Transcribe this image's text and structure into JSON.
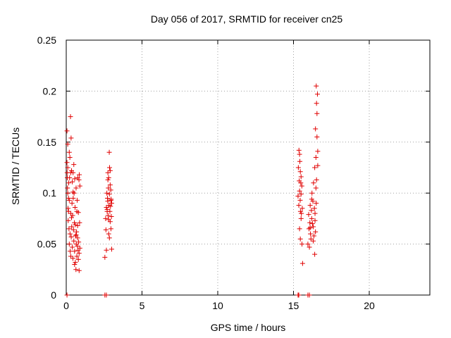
{
  "chart_data": {
    "type": "scatter",
    "title": "Day 056 of 2017, SRMTID for receiver cn25",
    "xlabel": "GPS time / hours",
    "ylabel": "SRMTID / TECUs",
    "xlim": [
      0,
      24
    ],
    "ylim": [
      0,
      0.25
    ],
    "xticks": [
      0,
      5,
      10,
      15,
      20
    ],
    "xtick_labels": [
      "0",
      "5",
      "10",
      "15",
      "20"
    ],
    "yticks": [
      0,
      0.05,
      0.1,
      0.15,
      0.2,
      0.25
    ],
    "ytick_labels": [
      "0",
      "0.05",
      "0.1",
      "0.15",
      "0.2",
      "0.25"
    ],
    "grid": true,
    "marker": "+",
    "color": "#e00000",
    "series": [
      {
        "name": "SRMTID",
        "x": [
          0.05,
          0.05,
          0.06,
          0.07,
          0.08,
          0.1,
          0.1,
          0.12,
          0.13,
          0.15,
          0.16,
          0.18,
          0.2,
          0.2,
          0.22,
          0.24,
          0.25,
          0.26,
          0.28,
          0.3,
          0.3,
          0.32,
          0.33,
          0.35,
          0.36,
          0.38,
          0.4,
          0.4,
          0.42,
          0.44,
          0.45,
          0.46,
          0.48,
          0.5,
          0.5,
          0.52,
          0.54,
          0.55,
          0.56,
          0.58,
          0.6,
          0.6,
          0.62,
          0.64,
          0.65,
          0.66,
          0.68,
          0.7,
          0.7,
          0.72,
          0.74,
          0.75,
          0.76,
          0.78,
          0.8,
          0.8,
          0.82,
          0.84,
          0.85,
          0.86,
          0.88,
          0.9,
          0.9,
          0.1,
          0.15,
          0.2,
          0.3,
          0.35,
          0.45,
          0.55,
          0.65,
          0.75,
          0.85,
          2.55,
          2.6,
          2.62,
          2.65,
          2.68,
          2.7,
          2.72,
          2.74,
          2.75,
          2.76,
          2.78,
          2.8,
          2.8,
          2.82,
          2.84,
          2.85,
          2.86,
          2.88,
          2.9,
          2.9,
          2.92,
          2.94,
          2.95,
          2.96,
          2.98,
          3.0,
          3.0,
          2.7,
          2.75,
          2.85,
          2.9,
          2.95,
          2.65,
          2.8,
          15.3,
          15.32,
          15.35,
          15.36,
          15.38,
          15.4,
          15.4,
          15.42,
          15.44,
          15.45,
          15.46,
          15.48,
          15.5,
          15.5,
          15.52,
          15.55,
          15.56,
          15.58,
          15.6,
          15.4,
          15.45,
          15.5,
          15.95,
          16.0,
          16.02,
          16.05,
          16.08,
          16.1,
          16.12,
          16.15,
          16.18,
          16.2,
          16.22,
          16.25,
          16.28,
          16.3,
          16.32,
          16.35,
          16.38,
          16.4,
          16.42,
          16.45,
          16.48,
          16.5,
          16.52,
          16.55,
          16.58,
          16.6,
          16.4,
          16.45,
          16.5,
          16.55,
          16.6,
          16.42,
          16.48,
          16.52,
          16.1,
          16.2,
          16.3
        ],
        "y": [
          0.161,
          0.13,
          0.12,
          0.115,
          0.105,
          0.148,
          0.1,
          0.085,
          0.073,
          0.095,
          0.11,
          0.065,
          0.14,
          0.05,
          0.115,
          0.135,
          0.06,
          0.043,
          0.175,
          0.08,
          0.038,
          0.154,
          0.057,
          0.122,
          0.067,
          0.09,
          0.111,
          0.047,
          0.078,
          0.036,
          0.12,
          0.095,
          0.064,
          0.128,
          0.053,
          0.1,
          0.071,
          0.043,
          0.114,
          0.086,
          0.032,
          0.069,
          0.058,
          0.025,
          0.105,
          0.05,
          0.062,
          0.082,
          0.038,
          0.093,
          0.048,
          0.056,
          0.115,
          0.044,
          0.081,
          0.035,
          0.052,
          0.113,
          0.024,
          0.118,
          0.071,
          0.107,
          0.046,
          0.125,
          0.082,
          0.093,
          0.12,
          0.076,
          0.101,
          0.03,
          0.059,
          0.068,
          0.041,
          0.037,
          0.075,
          0.064,
          0.086,
          0.1,
          0.082,
          0.095,
          0.092,
          0.12,
          0.078,
          0.105,
          0.074,
          0.115,
          0.088,
          0.14,
          0.099,
          0.125,
          0.082,
          0.108,
          0.072,
          0.087,
          0.103,
          0.065,
          0.094,
          0.077,
          0.09,
          0.045,
          0.084,
          0.113,
          0.056,
          0.122,
          0.093,
          0.044,
          0.06,
          0.097,
          0.125,
          0.088,
          0.142,
          0.112,
          0.138,
          0.102,
          0.131,
          0.093,
          0.121,
          0.082,
          0.11,
          0.099,
          0.075,
          0.08,
          0.107,
          0.05,
          0.085,
          0.031,
          0.065,
          0.055,
          0.116,
          0.05,
          0.079,
          0.065,
          0.047,
          0.071,
          0.088,
          0.06,
          0.055,
          0.083,
          0.075,
          0.1,
          0.07,
          0.092,
          0.067,
          0.11,
          0.058,
          0.085,
          0.125,
          0.073,
          0.163,
          0.135,
          0.205,
          0.113,
          0.178,
          0.197,
          0.141,
          0.04,
          0.062,
          0.09,
          0.155,
          0.127,
          0.08,
          0.105,
          0.188,
          0.066,
          0.094,
          0.053
        ],
        "zero_x": [
          0.05,
          2.55,
          2.65,
          15.3,
          15.35,
          15.95,
          16.05
        ]
      }
    ]
  }
}
